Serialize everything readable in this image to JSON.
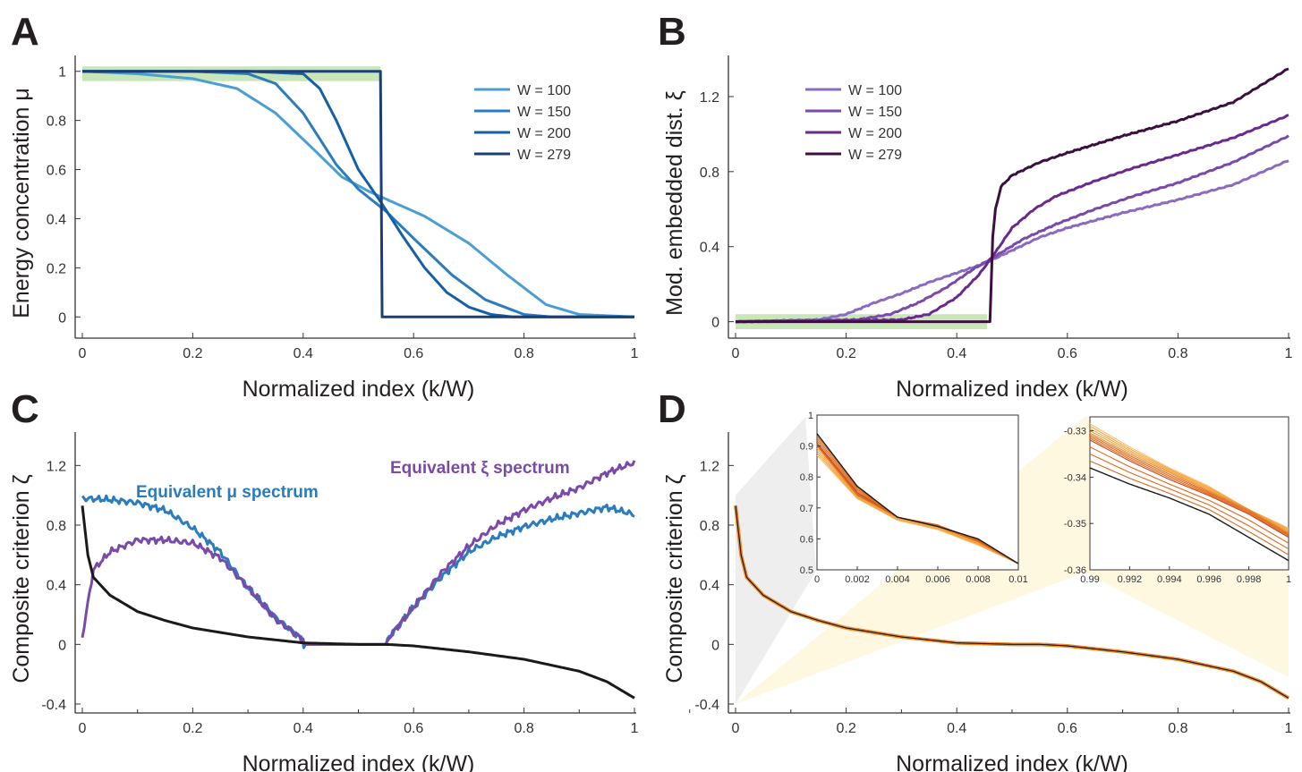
{
  "chart_data": [
    {
      "panel": "A",
      "type": "line",
      "xlabel": "Normalized index (k/W)",
      "ylabel": "Energy concentration μ",
      "xlim": [
        0,
        1
      ],
      "ylim": [
        -0.05,
        1.05
      ],
      "xticks": [
        "0",
        "0.2",
        "0.4",
        "0.6",
        "0.8",
        "1"
      ],
      "yticks": [
        "0",
        "0.2",
        "0.4",
        "0.6",
        "0.8",
        "1"
      ],
      "legend_position": "top-right",
      "shaded_band": {
        "x": [
          0,
          0.54
        ],
        "y": [
          0.96,
          1.02
        ],
        "color": "#c9e6b9"
      },
      "series": [
        {
          "name": "W = 100",
          "color": "#4a9ed3",
          "x": [
            0,
            0.1,
            0.2,
            0.28,
            0.35,
            0.42,
            0.47,
            0.52,
            0.56,
            0.62,
            0.7,
            0.77,
            0.84,
            0.9,
            1
          ],
          "y": [
            1,
            0.99,
            0.97,
            0.93,
            0.83,
            0.68,
            0.57,
            0.51,
            0.47,
            0.41,
            0.3,
            0.17,
            0.05,
            0.01,
            0
          ]
        },
        {
          "name": "W = 150",
          "color": "#2b7cbc",
          "x": [
            0,
            0.2,
            0.3,
            0.35,
            0.4,
            0.46,
            0.5,
            0.55,
            0.6,
            0.67,
            0.73,
            0.8,
            0.85,
            1
          ],
          "y": [
            1,
            1,
            0.99,
            0.95,
            0.83,
            0.62,
            0.52,
            0.43,
            0.32,
            0.17,
            0.07,
            0.01,
            0,
            0
          ]
        },
        {
          "name": "W = 200",
          "color": "#155fa7",
          "x": [
            0,
            0.3,
            0.4,
            0.43,
            0.46,
            0.5,
            0.54,
            0.58,
            0.62,
            0.66,
            0.7,
            0.74,
            0.78,
            1
          ],
          "y": [
            1,
            1,
            0.99,
            0.93,
            0.8,
            0.6,
            0.47,
            0.33,
            0.2,
            0.1,
            0.04,
            0.01,
            0,
            0
          ]
        },
        {
          "name": "W = 279",
          "color": "#1c3e73",
          "x": [
            0,
            0.54,
            0.543,
            1
          ],
          "y": [
            1,
            1,
            0,
            0
          ]
        }
      ]
    },
    {
      "panel": "B",
      "type": "line",
      "xlabel": "Normalized index (k/W)",
      "ylabel": "Mod. embedded dist. ξ",
      "xlim": [
        0,
        1
      ],
      "ylim": [
        -0.04,
        1.4
      ],
      "xticks": [
        "0",
        "0.2",
        "0.4",
        "0.6",
        "0.8",
        "1"
      ],
      "yticks": [
        "0",
        "0.4",
        "0.8",
        "1.2"
      ],
      "legend_position": "top-left",
      "shaded_band": {
        "x": [
          0,
          0.455
        ],
        "y": [
          -0.04,
          0.04
        ],
        "color": "#c9e6b9"
      },
      "series": [
        {
          "name": "W = 100",
          "color": "#8a6bbf",
          "x": [
            0,
            0.15,
            0.2,
            0.25,
            0.3,
            0.35,
            0.4,
            0.45,
            0.5,
            0.55,
            0.6,
            0.7,
            0.8,
            0.9,
            1
          ],
          "y": [
            0,
            0.01,
            0.04,
            0.1,
            0.15,
            0.21,
            0.26,
            0.31,
            0.38,
            0.45,
            0.5,
            0.58,
            0.65,
            0.73,
            0.86
          ]
        },
        {
          "name": "W = 150",
          "color": "#7a4aab",
          "x": [
            0,
            0.22,
            0.28,
            0.33,
            0.38,
            0.43,
            0.47,
            0.52,
            0.58,
            0.65,
            0.72,
            0.8,
            0.9,
            1
          ],
          "y": [
            0,
            0.01,
            0.04,
            0.1,
            0.18,
            0.28,
            0.35,
            0.44,
            0.52,
            0.6,
            0.67,
            0.74,
            0.85,
            0.99
          ]
        },
        {
          "name": "W = 200",
          "color": "#6a2a8c",
          "x": [
            0,
            0.3,
            0.35,
            0.4,
            0.44,
            0.47,
            0.5,
            0.54,
            0.58,
            0.65,
            0.72,
            0.8,
            0.9,
            1
          ],
          "y": [
            0,
            0.01,
            0.04,
            0.13,
            0.25,
            0.37,
            0.5,
            0.6,
            0.67,
            0.75,
            0.82,
            0.89,
            0.98,
            1.1
          ]
        },
        {
          "name": "W = 279",
          "color": "#3b0f3f",
          "x": [
            0,
            0.46,
            0.465,
            0.47,
            0.48,
            0.5,
            0.55,
            0.6,
            0.7,
            0.8,
            0.9,
            1
          ],
          "y": [
            0,
            0,
            0.45,
            0.6,
            0.72,
            0.78,
            0.85,
            0.9,
            0.99,
            1.07,
            1.17,
            1.35
          ]
        }
      ]
    },
    {
      "panel": "C",
      "type": "line",
      "xlabel": "Normalized index (k/W)",
      "ylabel": "Composite criterion ζ",
      "xlim": [
        0,
        1
      ],
      "ylim": [
        -0.4,
        1.4
      ],
      "xticks": [
        "0",
        "0.2",
        "0.4",
        "0.6",
        "0.8",
        "1"
      ],
      "yticks": [
        "-0.4",
        "0",
        "0.4",
        "0.8",
        "1.2"
      ],
      "annotations": [
        {
          "text": "Equivalent μ spectrum",
          "color": "#2b7cbc"
        },
        {
          "text": "Equivalent ξ spectrum",
          "color": "#7a4aab"
        }
      ],
      "series": [
        {
          "color": "#2b7cbc",
          "x": [
            0,
            0.05,
            0.1,
            0.15,
            0.2,
            0.25,
            0.3,
            0.35,
            0.4,
            0.401,
            0.55,
            0.556,
            0.6,
            0.65,
            0.7,
            0.75,
            0.8,
            0.85,
            0.9,
            0.95,
            1
          ],
          "y": [
            0.98,
            0.97,
            0.95,
            0.9,
            0.78,
            0.62,
            0.38,
            0.18,
            0.03,
            0,
            0,
            0.05,
            0.25,
            0.45,
            0.62,
            0.72,
            0.79,
            0.84,
            0.88,
            0.92,
            0.87
          ]
        },
        {
          "color": "#7a4aab",
          "x": [
            0,
            0.02,
            0.05,
            0.1,
            0.15,
            0.2,
            0.25,
            0.3,
            0.35,
            0.4,
            0.401,
            0.55,
            0.556,
            0.6,
            0.65,
            0.7,
            0.75,
            0.8,
            0.85,
            0.9,
            0.95,
            1
          ],
          "y": [
            0.05,
            0.5,
            0.62,
            0.7,
            0.7,
            0.68,
            0.58,
            0.38,
            0.17,
            0.03,
            0,
            0,
            0.05,
            0.25,
            0.48,
            0.66,
            0.8,
            0.9,
            0.98,
            1.05,
            1.15,
            1.22
          ]
        },
        {
          "color": "#1a1a1a",
          "x": [
            0,
            0.01,
            0.02,
            0.05,
            0.1,
            0.15,
            0.2,
            0.3,
            0.4,
            0.5,
            0.55,
            0.6,
            0.7,
            0.8,
            0.9,
            0.95,
            1
          ],
          "y": [
            0.93,
            0.6,
            0.45,
            0.33,
            0.22,
            0.16,
            0.11,
            0.05,
            0.01,
            0,
            0,
            -0.01,
            -0.05,
            -0.1,
            -0.18,
            -0.25,
            -0.36
          ]
        }
      ]
    },
    {
      "panel": "D",
      "type": "line",
      "xlabel": "Normalized index (k/W)",
      "ylabel": "Composite criterion ζ",
      "xlim": [
        0,
        1
      ],
      "ylim": [
        -0.4,
        1.4
      ],
      "xticks": [
        "0",
        "0.2",
        "0.4",
        "0.6",
        "0.8",
        "1"
      ],
      "yticks": [
        "-0.4",
        "0",
        "0.4",
        "0.8",
        "1.2"
      ],
      "series": [
        {
          "color": "#f08a24",
          "x": [
            0,
            0.01,
            0.02,
            0.05,
            0.1,
            0.15,
            0.2,
            0.3,
            0.4,
            0.5,
            0.55,
            0.6,
            0.7,
            0.8,
            0.9,
            0.95,
            1
          ],
          "y": [
            0.93,
            0.6,
            0.45,
            0.33,
            0.22,
            0.16,
            0.11,
            0.05,
            0.01,
            0,
            0,
            -0.01,
            -0.05,
            -0.1,
            -0.18,
            -0.25,
            -0.36
          ]
        },
        {
          "color": "#1a1a1a",
          "x": [
            0,
            0.01,
            0.02,
            0.05,
            0.1,
            0.15,
            0.2,
            0.3,
            0.4,
            0.5,
            0.55,
            0.6,
            0.7,
            0.8,
            0.9,
            0.95,
            1
          ],
          "y": [
            0.93,
            0.6,
            0.45,
            0.33,
            0.22,
            0.16,
            0.11,
            0.05,
            0.01,
            0,
            0,
            -0.01,
            -0.05,
            -0.1,
            -0.18,
            -0.25,
            -0.36
          ]
        }
      ],
      "insets": [
        {
          "xlim": [
            0,
            0.01
          ],
          "ylim": [
            0.5,
            1
          ],
          "xticks": [
            "0",
            "0.002",
            "0.004",
            "0.006",
            "0.008",
            "0.01"
          ],
          "yticks": [
            "0.5",
            "0.6",
            "0.7",
            "0.8",
            "0.9",
            "1"
          ],
          "series": [
            {
              "color": "#f7c06a",
              "x": [
                0,
                0.002,
                0.004,
                0.006,
                0.008,
                0.01
              ],
              "y": [
                0.87,
                0.73,
                0.66,
                0.63,
                0.58,
                0.52
              ]
            },
            {
              "color": "#f08a24",
              "x": [
                0,
                0.002,
                0.004,
                0.006,
                0.008,
                0.01
              ],
              "y": [
                0.9,
                0.74,
                0.67,
                0.64,
                0.59,
                0.52
              ]
            },
            {
              "color": "#c8451a",
              "x": [
                0,
                0.002,
                0.004,
                0.006,
                0.008,
                0.01
              ],
              "y": [
                0.91,
                0.75,
                0.67,
                0.645,
                0.595,
                0.52
              ]
            },
            {
              "color": "#1a1a1a",
              "x": [
                0,
                0.002,
                0.004,
                0.006,
                0.008,
                0.01
              ],
              "y": [
                0.94,
                0.77,
                0.67,
                0.64,
                0.6,
                0.52
              ]
            }
          ]
        },
        {
          "xlim": [
            0.99,
            1
          ],
          "ylim": [
            -0.36,
            -0.327
          ],
          "xticks": [
            "0.99",
            "0.992",
            "0.994",
            "0.996",
            "0.998",
            "1"
          ],
          "yticks": [
            "-0.33",
            "-0.34",
            "-0.35",
            "-0.36"
          ],
          "series": [
            {
              "color": "#f7c06a",
              "x": [
                0.99,
                0.992,
                0.994,
                0.996,
                0.998,
                1
              ],
              "y": [
                -0.3285,
                -0.3335,
                -0.338,
                -0.342,
                -0.347,
                -0.351
              ]
            },
            {
              "color": "#f08a24",
              "x": [
                0.99,
                0.992,
                0.994,
                0.996,
                0.998,
                1
              ],
              "y": [
                -0.3305,
                -0.335,
                -0.339,
                -0.343,
                -0.347,
                -0.352
              ]
            },
            {
              "color": "#c8451a",
              "x": [
                0.99,
                0.992,
                0.994,
                0.996,
                0.998,
                1
              ],
              "y": [
                -0.332,
                -0.3365,
                -0.3405,
                -0.344,
                -0.348,
                -0.353
              ]
            },
            {
              "color": "#1a1a1a",
              "x": [
                0.99,
                0.992,
                0.994,
                0.996,
                0.998,
                1
              ],
              "y": [
                -0.338,
                -0.3415,
                -0.3445,
                -0.348,
                -0.353,
                -0.358
              ]
            }
          ]
        }
      ]
    }
  ]
}
